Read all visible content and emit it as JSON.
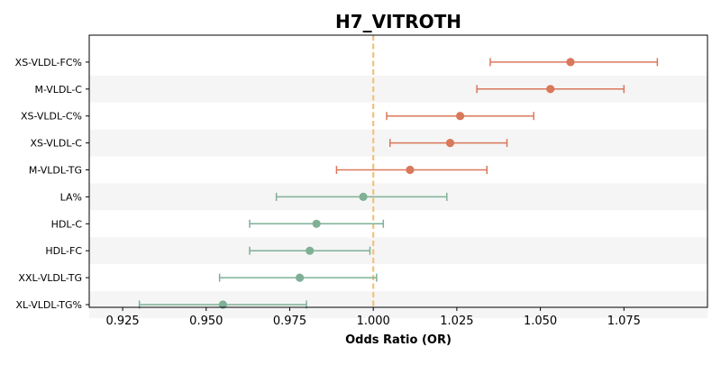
{
  "chart_data": {
    "type": "forest",
    "title": "H7_VITROTH",
    "xlabel": "Odds Ratio (OR)",
    "ylabel": "",
    "xlim": [
      0.915,
      1.1
    ],
    "xticks": [
      "0.925",
      "0.950",
      "0.975",
      "1.000",
      "1.025",
      "1.050",
      "1.075"
    ],
    "reference_line": 1.0,
    "row_shading": "alternating",
    "grid": false,
    "colors": {
      "positive": "#d9785a",
      "negative": "#7fb096",
      "reference": "#f0c27f",
      "shade": "#f5f5f5"
    },
    "rows": [
      {
        "label": "XS-VLDL-FC%",
        "or": 1.059,
        "lower": 1.035,
        "upper": 1.085
      },
      {
        "label": "M-VLDL-C",
        "or": 1.053,
        "lower": 1.031,
        "upper": 1.075
      },
      {
        "label": "XS-VLDL-C%",
        "or": 1.026,
        "lower": 1.004,
        "upper": 1.048
      },
      {
        "label": "XS-VLDL-C",
        "or": 1.023,
        "lower": 1.005,
        "upper": 1.04
      },
      {
        "label": "M-VLDL-TG",
        "or": 1.011,
        "lower": 0.989,
        "upper": 1.034
      },
      {
        "label": "LA%",
        "or": 0.997,
        "lower": 0.971,
        "upper": 1.022
      },
      {
        "label": "HDL-C",
        "or": 0.983,
        "lower": 0.963,
        "upper": 1.003
      },
      {
        "label": "HDL-FC",
        "or": 0.981,
        "lower": 0.963,
        "upper": 0.999
      },
      {
        "label": "XXL-VLDL-TG",
        "or": 0.978,
        "lower": 0.954,
        "upper": 1.001
      },
      {
        "label": "XL-VLDL-TG%",
        "or": 0.955,
        "lower": 0.93,
        "upper": 0.98
      }
    ]
  }
}
